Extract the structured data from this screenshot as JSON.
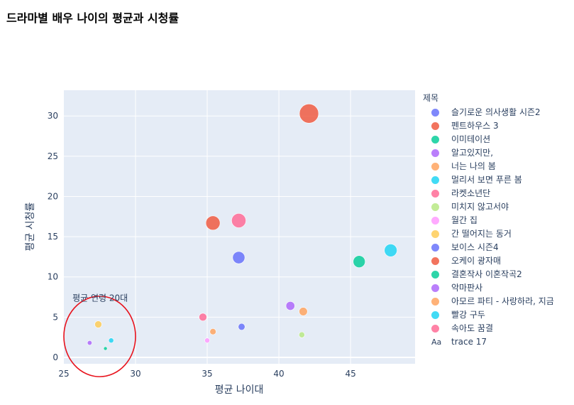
{
  "title": "드라마별 배우 나이의 평균과 시청률",
  "legend": {
    "title": "제목",
    "items": [
      {
        "label": "슬기로운 의사생활 시즌2",
        "color": "#636efa"
      },
      {
        "label": "펜트하우스 3",
        "color": "#EF553B"
      },
      {
        "label": "이미테이션",
        "color": "#00cc96"
      },
      {
        "label": "알고있지만,",
        "color": "#ab63fa"
      },
      {
        "label": "너는 나의 봄",
        "color": "#FFA15A"
      },
      {
        "label": "멀리서 보면 푸른 봄",
        "color": "#19d3f3"
      },
      {
        "label": "라켓소년단",
        "color": "#FF6692"
      },
      {
        "label": "미치지 않고서야",
        "color": "#B6E880"
      },
      {
        "label": "월간 집",
        "color": "#FF97FF"
      },
      {
        "label": "간 떨어지는 동거",
        "color": "#FECB52"
      },
      {
        "label": "보이스 시즌4",
        "color": "#636efa"
      },
      {
        "label": "오케이 광자매",
        "color": "#EF553B"
      },
      {
        "label": "결혼작사 이혼작곡2",
        "color": "#00cc96"
      },
      {
        "label": "악마판사",
        "color": "#ab63fa"
      },
      {
        "label": "아모르 파티 - 사랑하라, 지금",
        "color": "#FFA15A"
      },
      {
        "label": "빨강 구두",
        "color": "#19d3f3"
      },
      {
        "label": "속아도 꿈결",
        "color": "#FF6692"
      },
      {
        "label": "trace 17",
        "icon": "Aa"
      }
    ]
  },
  "annotation": {
    "text": "평균 연령 20대",
    "circle_color": "#e8121c"
  },
  "chart_data": {
    "type": "scatter",
    "title": "드라마별 배우 나이의 평균과 시청률",
    "xlabel": "평균 나이대",
    "ylabel": "평균 시청률",
    "xlim": [
      25,
      49.5
    ],
    "ylim": [
      -0.8,
      33.2
    ],
    "xticks": [
      25,
      30,
      35,
      40,
      45
    ],
    "yticks": [
      0,
      5,
      10,
      15,
      20,
      25,
      30
    ],
    "grid": true,
    "legend_position": "right",
    "series": [
      {
        "name": "슬기로운 의사생활 시즌2",
        "x": 37.2,
        "y": 12.4,
        "size": 12.4,
        "color": "#636efa"
      },
      {
        "name": "펜트하우스 3",
        "x": 42.1,
        "y": 30.3,
        "size": 30.3,
        "color": "#EF553B"
      },
      {
        "name": "이미테이션",
        "x": 27.9,
        "y": 1.1,
        "size": 1.1,
        "color": "#00cc96"
      },
      {
        "name": "알고있지만,",
        "x": 26.8,
        "y": 1.8,
        "size": 1.8,
        "color": "#ab63fa"
      },
      {
        "name": "너는 나의 봄",
        "x": 35.4,
        "y": 3.2,
        "size": 3.2,
        "color": "#FFA15A"
      },
      {
        "name": "멀리서 보면 푸른 봄",
        "x": 28.3,
        "y": 2.1,
        "size": 2.1,
        "color": "#19d3f3"
      },
      {
        "name": "라켓소년단",
        "x": 34.7,
        "y": 5.0,
        "size": 5.0,
        "color": "#FF6692"
      },
      {
        "name": "미치지 않고서야",
        "x": 41.6,
        "y": 2.8,
        "size": 2.8,
        "color": "#B6E880"
      },
      {
        "name": "월간 집",
        "x": 35.0,
        "y": 2.1,
        "size": 2.1,
        "color": "#FF97FF"
      },
      {
        "name": "간 떨어지는 동거",
        "x": 27.4,
        "y": 4.1,
        "size": 4.1,
        "color": "#FECB52"
      },
      {
        "name": "보이스 시즌4",
        "x": 37.4,
        "y": 3.8,
        "size": 3.8,
        "color": "#636efa"
      },
      {
        "name": "오케이 광자매",
        "x": 35.4,
        "y": 16.7,
        "size": 16.7,
        "color": "#EF553B"
      },
      {
        "name": "결혼작사 이혼작곡2",
        "x": 45.6,
        "y": 11.9,
        "size": 11.9,
        "color": "#00cc96"
      },
      {
        "name": "악마판사",
        "x": 40.8,
        "y": 6.4,
        "size": 6.4,
        "color": "#ab63fa"
      },
      {
        "name": "아모르 파티 - 사랑하라, 지금",
        "x": 41.7,
        "y": 5.7,
        "size": 5.7,
        "color": "#FFA15A"
      },
      {
        "name": "빨강 구두",
        "x": 47.8,
        "y": 13.3,
        "size": 13.3,
        "color": "#19d3f3"
      },
      {
        "name": "속아도 꿈결",
        "x": 37.2,
        "y": 17.0,
        "size": 17.0,
        "color": "#FF6692"
      }
    ],
    "annotation_circle": {
      "cx": 27.5,
      "cy": 2.6,
      "rx": 2.5,
      "ry": 5.0
    },
    "annotation_text_at": {
      "x": 25.6,
      "y": 7.0
    }
  }
}
